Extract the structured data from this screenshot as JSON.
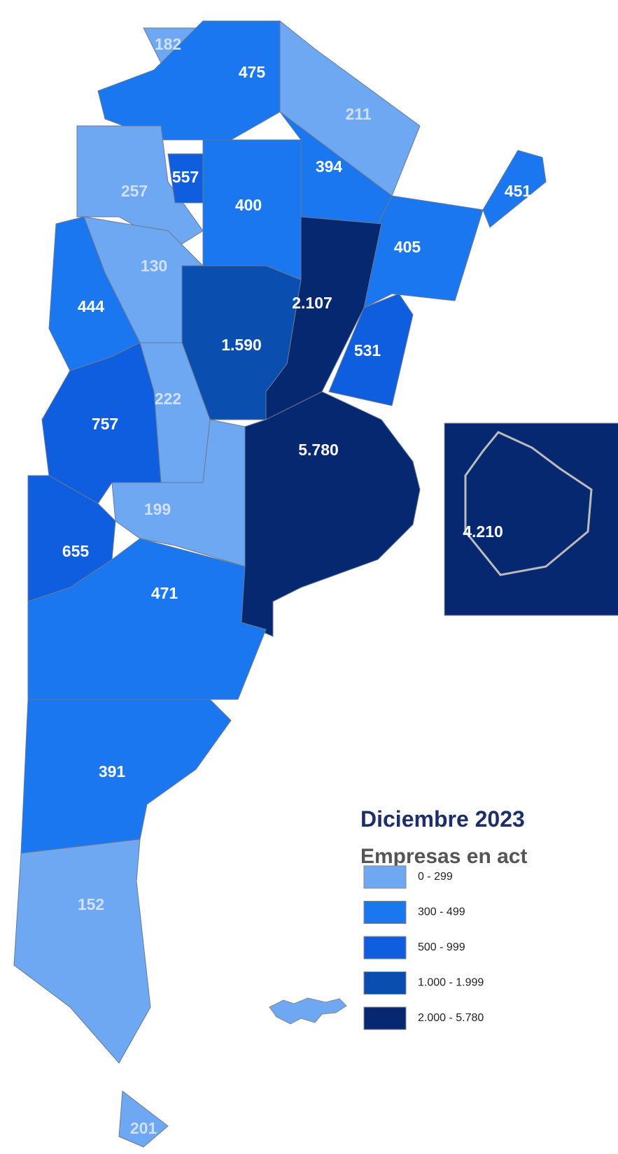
{
  "title": "Diciembre 2023",
  "subtitle": "Empresas en act",
  "regions": [
    {
      "label": "182",
      "color": "#6fa8f2"
    },
    {
      "label": "475",
      "color": "#1a77f0"
    },
    {
      "label": "211",
      "color": "#6fa8f2"
    },
    {
      "label": "394",
      "color": "#1a77f0"
    },
    {
      "label": "451",
      "color": "#1a77f0"
    },
    {
      "label": "257",
      "color": "#6fa8f2"
    },
    {
      "label": "557",
      "color": "#0f5ee0"
    },
    {
      "label": "400",
      "color": "#1a77f0"
    },
    {
      "label": "405",
      "color": "#1a77f0"
    },
    {
      "label": "2.107",
      "color": "#062870"
    },
    {
      "label": "130",
      "color": "#6fa8f2"
    },
    {
      "label": "444",
      "color": "#1a77f0"
    },
    {
      "label": "1.590",
      "color": "#0a4fb0"
    },
    {
      "label": "531",
      "color": "#0f5ee0"
    },
    {
      "label": "222",
      "color": "#6fa8f2"
    },
    {
      "label": "757",
      "color": "#0f5ee0"
    },
    {
      "label": "5.780",
      "color": "#062870"
    },
    {
      "label": "199",
      "color": "#6fa8f2"
    },
    {
      "label": "655",
      "color": "#0f5ee0"
    },
    {
      "label": "471",
      "color": "#1a77f0"
    },
    {
      "label": "391",
      "color": "#1a77f0"
    },
    {
      "label": "152",
      "color": "#6fa8f2"
    },
    {
      "label": "201",
      "color": "#6fa8f2"
    }
  ],
  "inset": {
    "label": "4.210",
    "color": "#062870"
  },
  "legend": [
    {
      "label": "0 - 299",
      "color": "#6fa8f2"
    },
    {
      "label": "300 - 499",
      "color": "#1a77f0"
    },
    {
      "label": "500 - 999",
      "color": "#0f5ee0"
    },
    {
      "label": "1.000 - 1.999",
      "color": "#0a4fb0"
    },
    {
      "label": "2.000 - 5.780",
      "color": "#062870"
    }
  ]
}
